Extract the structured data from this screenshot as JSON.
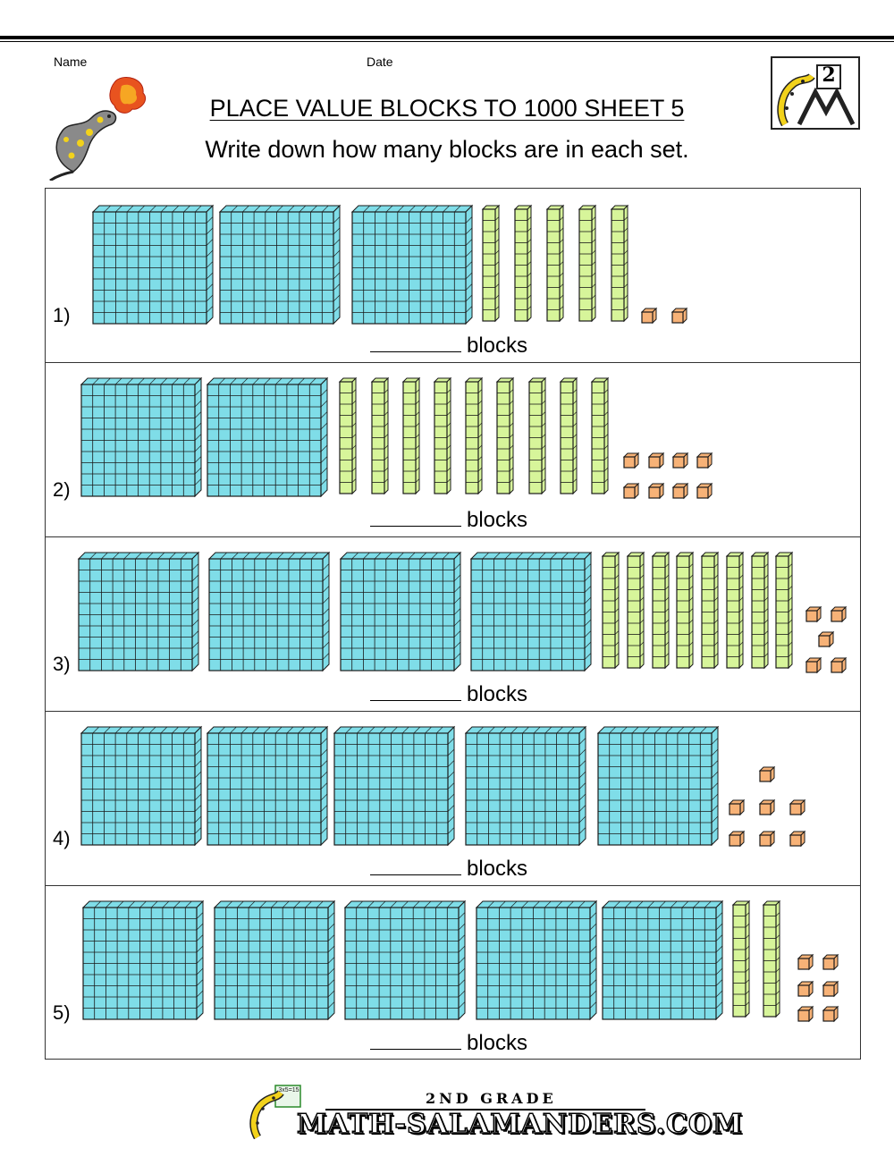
{
  "header": {
    "name_label": "Name",
    "date_label": "Date",
    "title": "PLACE VALUE BLOCKS TO 1000 SHEET 5",
    "subtitle": "Write down how many blocks are in each set.",
    "grade_badge": "2"
  },
  "colors": {
    "hundreds": "#7fdde8",
    "tens": "#d7f59a",
    "ones": "#f7b277",
    "outline": "#1a1a1a"
  },
  "questions": [
    {
      "label": "1)",
      "hundreds": 3,
      "tens": 5,
      "ones": 2,
      "answer_suffix": "blocks"
    },
    {
      "label": "2)",
      "hundreds": 2,
      "tens": 9,
      "ones": 8,
      "answer_suffix": "blocks"
    },
    {
      "label": "3)",
      "hundreds": 4,
      "tens": 8,
      "ones": 5,
      "answer_suffix": "blocks"
    },
    {
      "label": "4)",
      "hundreds": 5,
      "tens": 0,
      "ones": 7,
      "answer_suffix": "blocks"
    },
    {
      "label": "5)",
      "hundreds": 5,
      "tens": 2,
      "ones": 6,
      "answer_suffix": "blocks"
    }
  ],
  "footer": {
    "grade_text": "2ND GRADE",
    "site_text": "MATH-SALAMANDERS.COM",
    "board_text": "3x5=15"
  },
  "icons": {
    "salamander_top": "fire-breathing-salamander-icon",
    "grade_logo": "salamander-grade-logo-icon",
    "footer_mascot": "salamander-mascot-icon"
  }
}
